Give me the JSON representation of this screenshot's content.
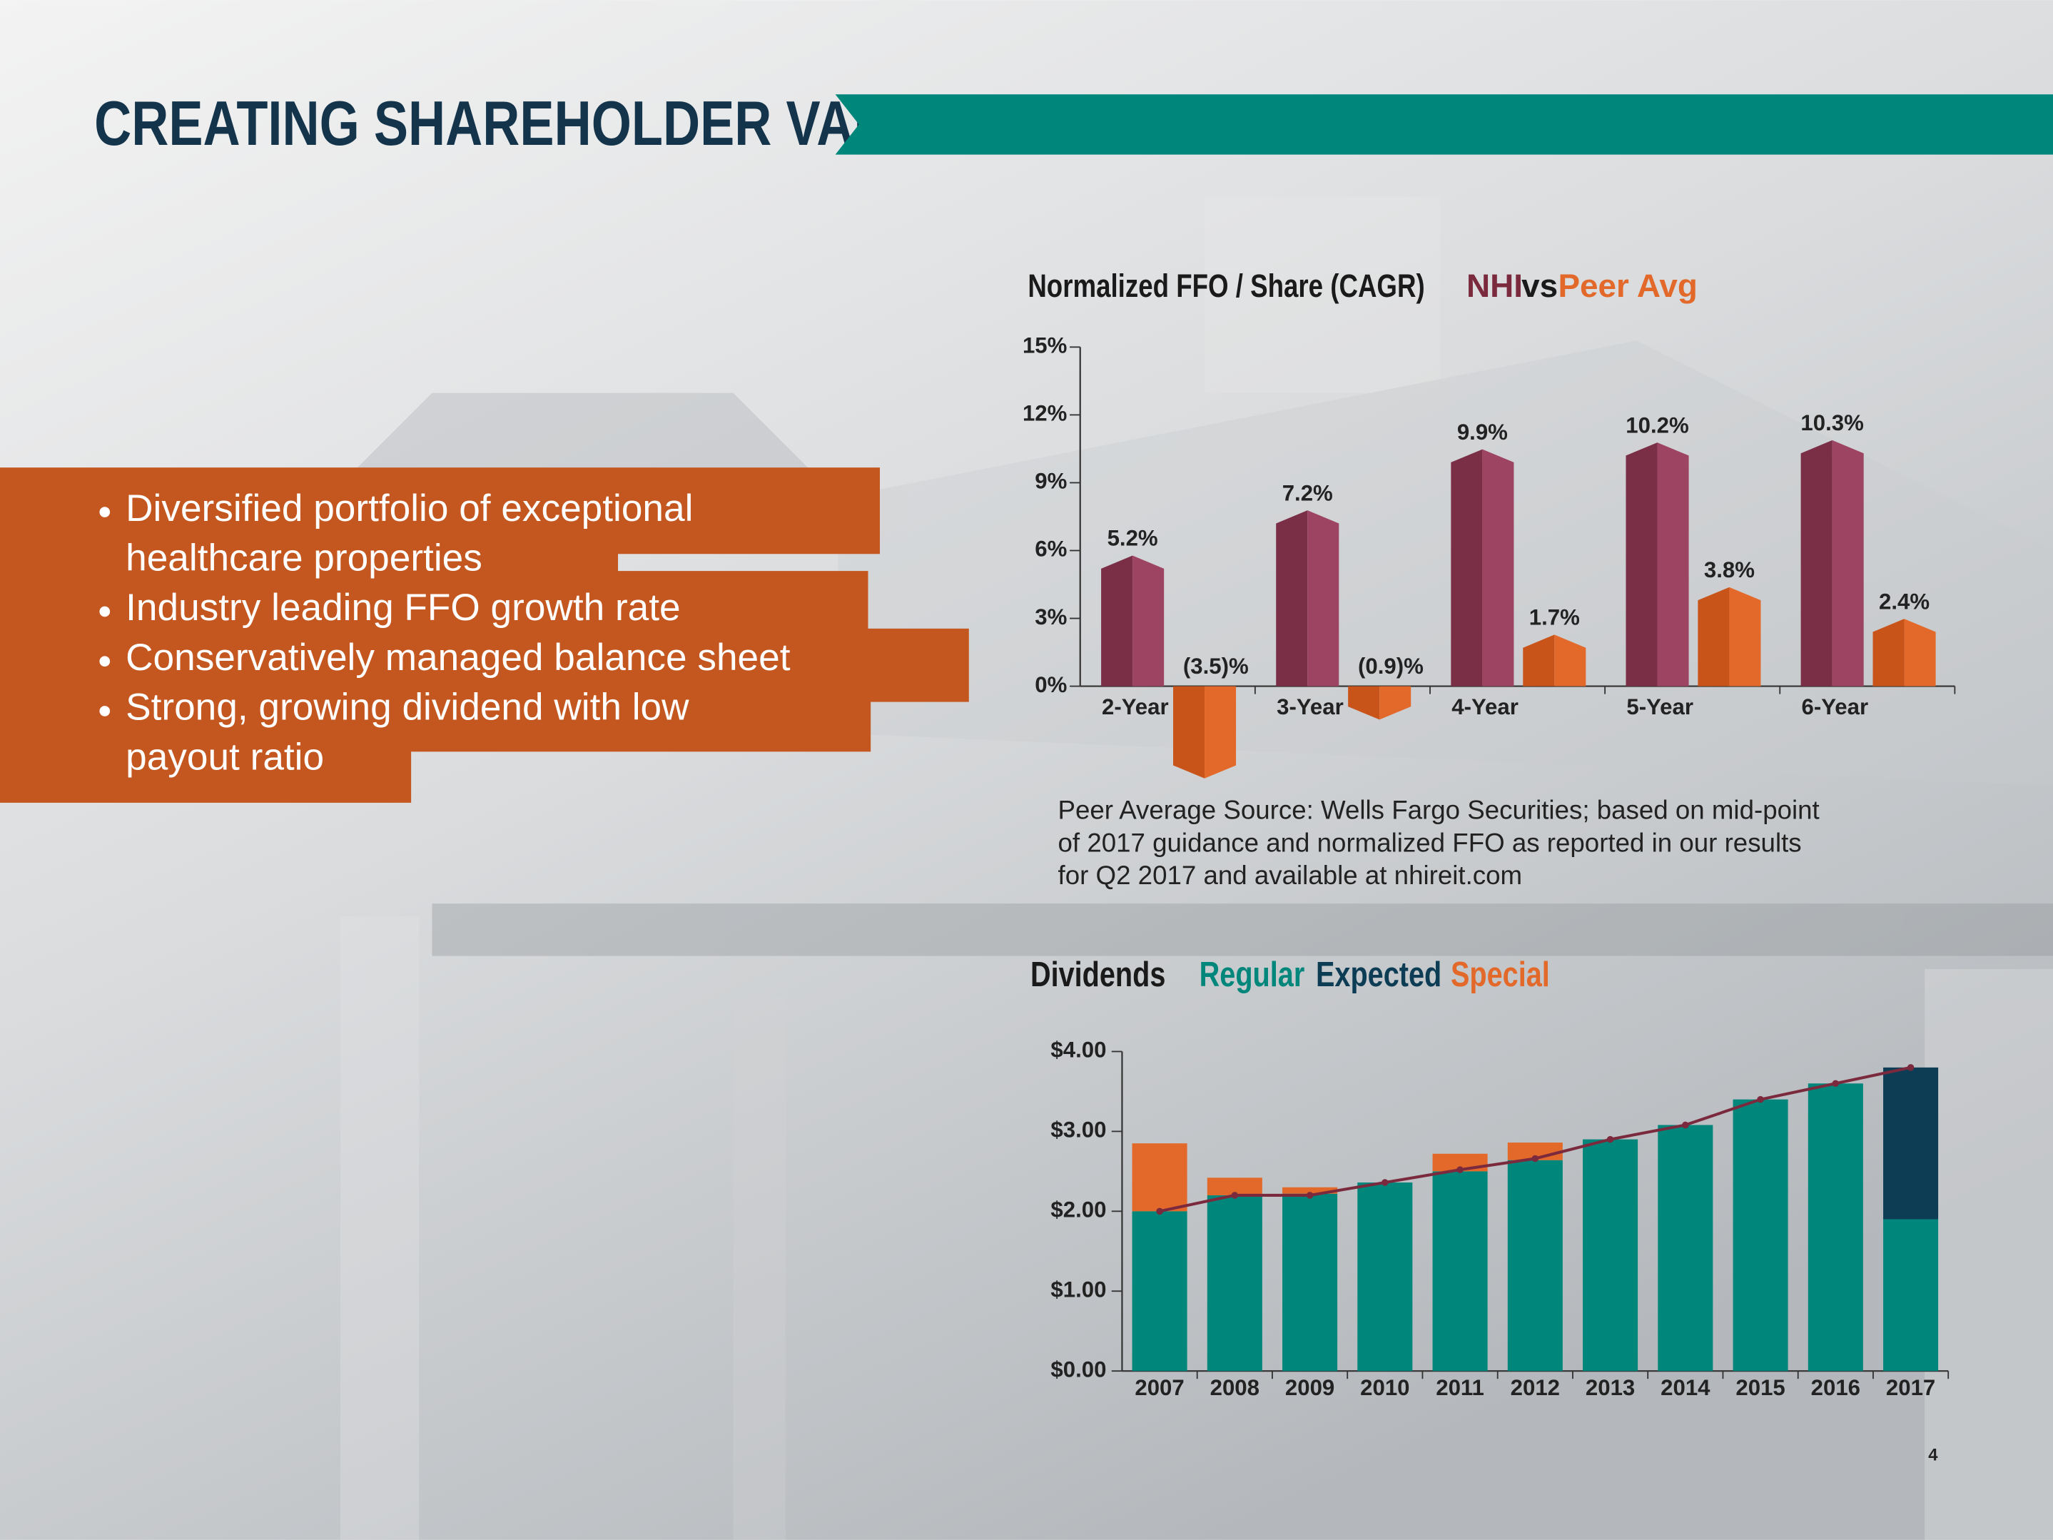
{
  "header": {
    "title": "CREATING SHAREHOLDER VALUE"
  },
  "bullets": [
    [
      "Diversified portfolio of exceptional",
      "healthcare properties"
    ],
    [
      "Industry leading FFO growth rate"
    ],
    [
      "Conservatively managed balance sheet"
    ],
    [
      "Strong, growing dividend with low",
      "payout ratio"
    ]
  ],
  "footnote": [
    "Peer Average Source: Wells Fargo Securities; based on mid-point",
    "of 2017 guidance and normalized FFO as reported in our results",
    "for Q2 2017 and available at nhireit.com"
  ],
  "page_number": "4",
  "chart_data": [
    {
      "type": "bar3d",
      "title": "Normalized FFO / Share (CAGR)",
      "legend_joiner": "vs",
      "categories": [
        "2-Year",
        "3-Year",
        "4-Year",
        "5-Year",
        "6-Year"
      ],
      "series": [
        {
          "name": "NHI",
          "color": "#9c4462",
          "values": [
            5.2,
            7.2,
            9.9,
            10.2,
            10.3
          ],
          "value_labels": [
            "5.2%",
            "7.2%",
            "9.9%",
            "10.2%",
            "10.3%"
          ]
        },
        {
          "name": "Peer Avg",
          "color": "#e2692a",
          "values": [
            -3.5,
            -0.9,
            1.7,
            3.8,
            2.4
          ],
          "value_labels": [
            "(3.5)%",
            "(0.9)%",
            "1.7%",
            "3.8%",
            "2.4%"
          ]
        }
      ],
      "ylim": [
        0,
        15
      ],
      "yticks": [
        {
          "value": 0,
          "label": "0%"
        },
        {
          "value": 3,
          "label": "3%"
        },
        {
          "value": 6,
          "label": "6%"
        },
        {
          "value": 9,
          "label": "9%"
        },
        {
          "value": 12,
          "label": "12%"
        },
        {
          "value": 15,
          "label": "15%"
        }
      ]
    },
    {
      "type": "stacked_bar",
      "title": "Dividends",
      "categories": [
        "2007",
        "2008",
        "2009",
        "2010",
        "2011",
        "2012",
        "2013",
        "2014",
        "2015",
        "2016",
        "2017"
      ],
      "series": [
        {
          "name": "Regular",
          "color": "#00867b",
          "values": [
            2.0,
            2.2,
            2.22,
            2.36,
            2.5,
            2.64,
            2.9,
            3.08,
            3.4,
            3.6,
            1.9
          ]
        },
        {
          "name": "Expected",
          "color": "#0d3d55",
          "values": [
            0,
            0,
            0,
            0,
            0,
            0,
            0,
            0,
            0,
            0,
            1.9
          ]
        },
        {
          "name": "Special",
          "color": "#e2692a",
          "values": [
            0.85,
            0.22,
            0.08,
            0,
            0.22,
            0.22,
            0,
            0,
            0,
            0,
            0
          ]
        }
      ],
      "line": {
        "color": "#7b2a3e",
        "values": [
          2.0,
          2.2,
          2.2,
          2.36,
          2.52,
          2.66,
          2.9,
          3.08,
          3.4,
          3.6,
          3.8
        ]
      },
      "ylim": [
        0,
        4
      ],
      "yticks": [
        {
          "value": 0,
          "label": "$0.00"
        },
        {
          "value": 1,
          "label": "$1.00"
        },
        {
          "value": 2,
          "label": "$2.00"
        },
        {
          "value": 3,
          "label": "$3.00"
        },
        {
          "value": 4,
          "label": "$4.00"
        }
      ]
    }
  ]
}
